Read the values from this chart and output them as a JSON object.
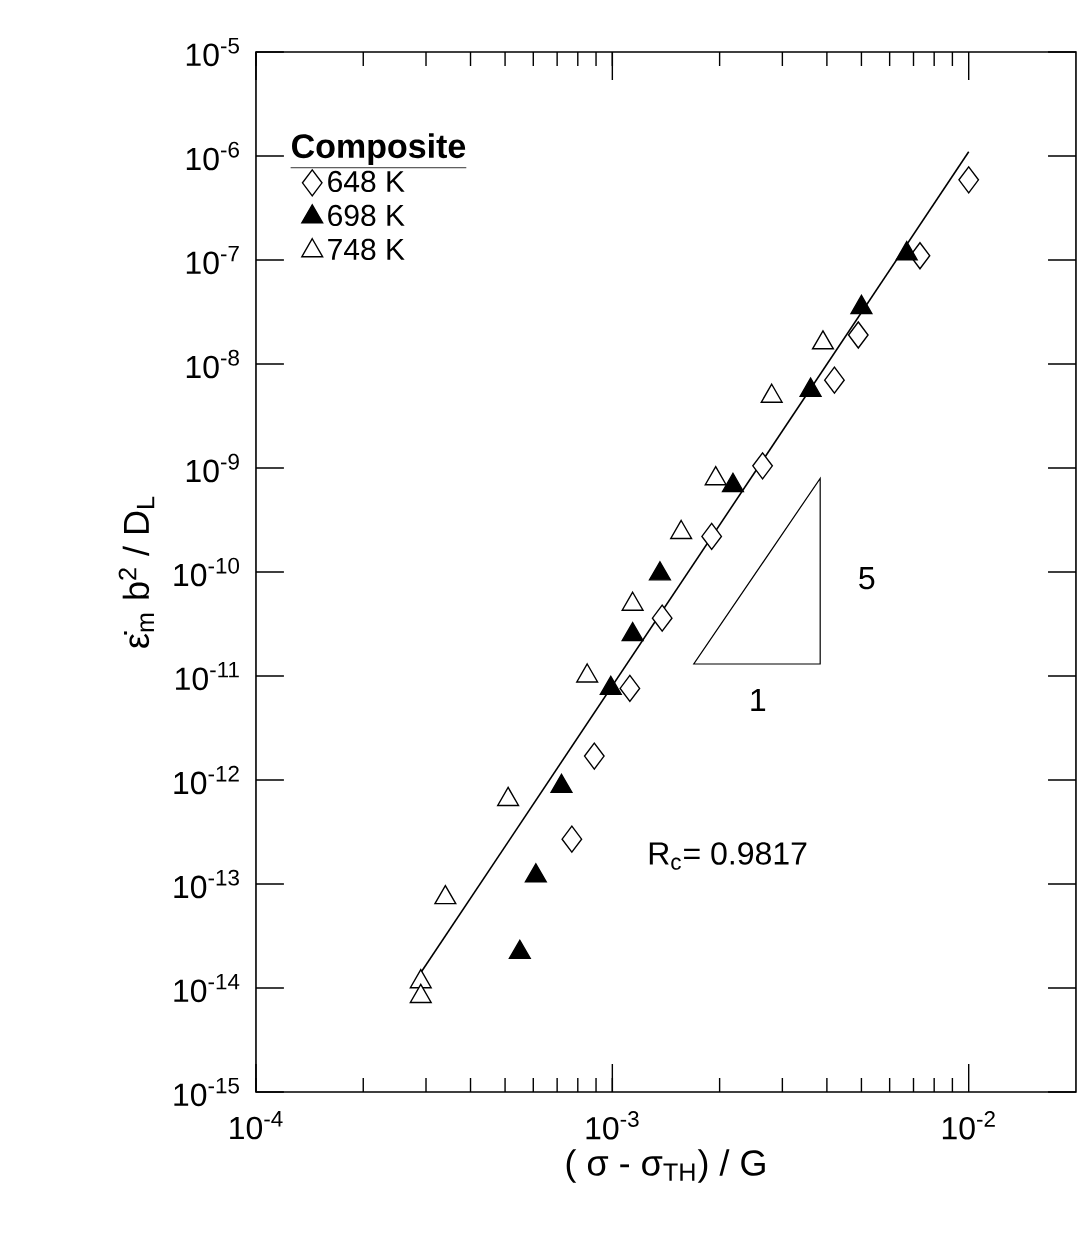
{
  "chart_data": {
    "type": "scatter",
    "xlabel": "( σ - σ$_{TH}$) / G",
    "ylabel": "ε̇$_{m}$ b$^{2}$ / D$_{L}$",
    "legend_title": "Composite",
    "legend": "top left",
    "log": "xy",
    "xlim": [
      0.0001,
      0.02
    ],
    "ylim": [
      1e-15,
      1e-05
    ],
    "xticks": [
      {
        "value": 0.0001,
        "label": "10$^{-4}$"
      },
      {
        "value": 0.001,
        "label": "10$^{-3}$"
      },
      {
        "value": 0.01,
        "label": "10$^{-2}$"
      }
    ],
    "yticks": [
      {
        "value": 1e-15,
        "label": "10$^{-15}$"
      },
      {
        "value": 1e-14,
        "label": "10$^{-14}$"
      },
      {
        "value": 1e-13,
        "label": "10$^{-13}$"
      },
      {
        "value": 1e-12,
        "label": "10$^{-12}$"
      },
      {
        "value": 1e-11,
        "label": "10$^{-11}$"
      },
      {
        "value": 1e-10,
        "label": "10$^{-10}$"
      },
      {
        "value": 1e-09,
        "label": "10$^{-9}$"
      },
      {
        "value": 1e-08,
        "label": "10$^{-8}$"
      },
      {
        "value": 1e-07,
        "label": "10$^{-7}$"
      },
      {
        "value": 1e-06,
        "label": "10$^{-6}$"
      },
      {
        "value": 1e-05,
        "label": "10$^{-5}$"
      }
    ],
    "series": [
      {
        "name": "648 K",
        "marker": "diamond",
        "color": "#ffffff",
        "x": [
          0.01,
          0.0073,
          0.0049,
          0.0042,
          0.00264,
          0.0019,
          0.00138,
          0.00112,
          0.00089,
          0.00077
        ],
        "values": [
          5.9e-07,
          1.1e-07,
          1.9e-08,
          7e-09,
          1.05e-09,
          2.2e-10,
          3.6e-11,
          7.6e-12,
          1.7e-12,
          2.7e-13
        ]
      },
      {
        "name": "698 K",
        "marker": "triangle",
        "color": "#000000",
        "x": [
          0.0067,
          0.005,
          0.0036,
          0.00218,
          0.00136,
          0.00114,
          0.00099,
          0.00072,
          0.00061,
          0.00055
        ],
        "values": [
          1.15e-07,
          3.5e-08,
          5.6e-09,
          6.8e-10,
          9.6e-11,
          2.5e-11,
          7.6e-12,
          8.7e-13,
          1.2e-13,
          2.2e-14
        ]
      },
      {
        "name": "748 K",
        "marker": "triangle",
        "color": "#ffffff",
        "x": [
          0.0039,
          0.0028,
          0.00195,
          0.00156,
          0.00114,
          0.00085,
          0.00051,
          0.00034,
          0.00029,
          0.00029
        ],
        "values": [
          1.6e-08,
          4.9e-09,
          7.9e-10,
          2.4e-10,
          4.9e-11,
          1e-11,
          6.5e-13,
          7.4e-14,
          1.15e-14,
          8.3e-15
        ]
      },
      {
        "type": "line",
        "marker": "none",
        "color": "#000000",
        "x": [
          0.00029,
          0.01
        ],
        "values": [
          1.4e-14,
          1.1e-06
        ]
      }
    ],
    "annotations": [
      "5",
      "1",
      "R$_{c}$= 0.9817"
    ]
  }
}
